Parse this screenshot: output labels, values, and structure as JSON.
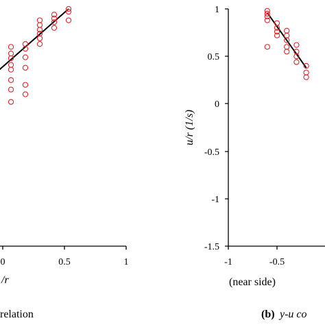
{
  "chart_data": [
    {
      "type": "scatter",
      "panel": "a",
      "x_unit_label": "/r",
      "xlim": [
        -0.2,
        1.0
      ],
      "ylim": [
        -1.5,
        1.0
      ],
      "x_ticks": [
        "0",
        "0.5",
        "1"
      ],
      "caption_tail": "relation",
      "series": [
        {
          "points": [
            [
              0.0,
              0.05
            ],
            [
              0.0,
              0.2
            ],
            [
              0.0,
              0.28
            ],
            [
              0.0,
              0.34
            ],
            [
              0.0,
              0.4
            ],
            [
              0.0,
              0.45
            ],
            [
              0.0,
              0.55
            ],
            [
              0.0,
              0.6
            ],
            [
              0.1,
              0.1
            ],
            [
              0.1,
              0.2
            ],
            [
              0.1,
              0.28
            ],
            [
              0.1,
              0.35
            ],
            [
              0.1,
              0.38
            ],
            [
              0.1,
              0.42
            ],
            [
              0.2,
              0.15
            ],
            [
              0.2,
              0.25
            ],
            [
              0.2,
              0.36
            ],
            [
              0.2,
              0.41
            ],
            [
              0.2,
              0.48
            ],
            [
              0.2,
              0.53
            ],
            [
              0.2,
              0.6
            ],
            [
              0.2,
              0.02
            ],
            [
              0.3,
              0.1
            ],
            [
              0.3,
              0.2
            ],
            [
              0.3,
              0.38
            ],
            [
              0.3,
              0.49
            ],
            [
              0.3,
              0.58
            ],
            [
              0.3,
              0.63
            ],
            [
              0.4,
              0.63
            ],
            [
              0.4,
              0.69
            ],
            [
              0.4,
              0.74
            ],
            [
              0.4,
              0.78
            ],
            [
              0.4,
              0.83
            ],
            [
              0.4,
              0.88
            ],
            [
              0.5,
              0.8
            ],
            [
              0.5,
              0.86
            ],
            [
              0.5,
              0.9
            ],
            [
              0.5,
              0.94
            ],
            [
              0.6,
              0.88
            ],
            [
              0.6,
              0.97
            ],
            [
              0.6,
              1.0
            ]
          ]
        }
      ],
      "fit_line": [
        [
          0.0,
          0.2
        ],
        [
          0.6,
          1.0
        ]
      ]
    },
    {
      "type": "scatter",
      "panel": "b",
      "xlabel": "(near side)",
      "ylabel": "u/r (1/s)",
      "xlim": [
        -1,
        0.0
      ],
      "ylim": [
        -1.5,
        1.0
      ],
      "x_ticks": [
        "-1",
        "-0.5"
      ],
      "y_ticks": [
        "1",
        "0.5",
        "0",
        "-0.5",
        "-1",
        "-1.5"
      ],
      "caption_label": "(b)",
      "caption_text": "y-u co",
      "series": [
        {
          "points": [
            [
              -0.6,
              0.98
            ],
            [
              -0.6,
              0.95
            ],
            [
              -0.6,
              0.92
            ],
            [
              -0.6,
              0.88
            ],
            [
              -0.6,
              0.6
            ],
            [
              -0.5,
              0.85
            ],
            [
              -0.5,
              0.8
            ],
            [
              -0.5,
              0.76
            ],
            [
              -0.5,
              0.72
            ],
            [
              -0.4,
              0.77
            ],
            [
              -0.4,
              0.72
            ],
            [
              -0.4,
              0.67
            ],
            [
              -0.4,
              0.6
            ],
            [
              -0.4,
              0.55
            ],
            [
              -0.3,
              0.62
            ],
            [
              -0.3,
              0.55
            ],
            [
              -0.3,
              0.5
            ],
            [
              -0.3,
              0.44
            ],
            [
              -0.2,
              0.4
            ],
            [
              -0.2,
              0.33
            ],
            [
              -0.2,
              0.28
            ]
          ]
        }
      ],
      "fit_line": [
        [
          -0.6,
          0.96
        ],
        [
          -0.2,
          0.38
        ]
      ]
    }
  ]
}
